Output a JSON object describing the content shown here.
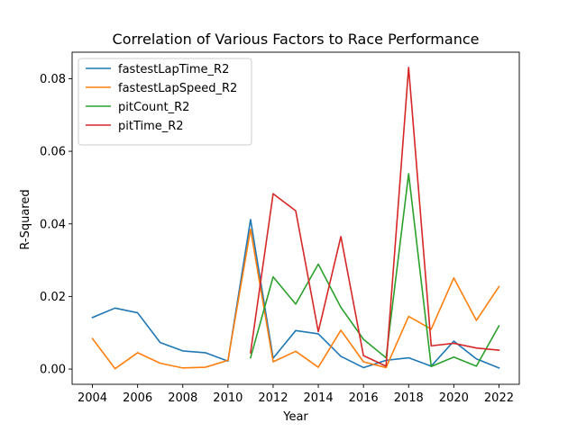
{
  "chart_data": {
    "type": "line",
    "title": "Correlation of Various Factors to Race Performance",
    "xlabel": "Year",
    "ylabel": "R-Squared",
    "xlim": [
      2003.1,
      2022.9
    ],
    "ylim": [
      -0.0042,
      0.0873
    ],
    "x_ticks": [
      2004,
      2006,
      2008,
      2010,
      2012,
      2014,
      2016,
      2018,
      2020,
      2022
    ],
    "y_ticks": [
      0.0,
      0.02,
      0.04,
      0.06,
      0.08
    ],
    "y_tick_labels": [
      "0.00",
      "0.02",
      "0.04",
      "0.06",
      "0.08"
    ],
    "grid": false,
    "legend_position": "upper-left",
    "series": [
      {
        "name": "fastestLapTime_R2",
        "color": "#1f77b4",
        "x": [
          2004,
          2005,
          2006,
          2007,
          2008,
          2009,
          2010,
          2011,
          2012,
          2013,
          2014,
          2015,
          2016,
          2017,
          2018,
          2019,
          2020,
          2021,
          2022
        ],
        "y": [
          0.0142,
          0.0168,
          0.0155,
          0.0073,
          0.005,
          0.0045,
          0.0022,
          0.0412,
          0.003,
          0.0106,
          0.0097,
          0.0035,
          0.0004,
          0.0024,
          0.0031,
          0.0008,
          0.0077,
          0.0028,
          0.0003
        ]
      },
      {
        "name": "fastestLapSpeed_R2",
        "color": "#ff7f0e",
        "x": [
          2004,
          2005,
          2006,
          2007,
          2008,
          2009,
          2010,
          2011,
          2012,
          2013,
          2014,
          2015,
          2016,
          2017,
          2018,
          2019,
          2020,
          2021,
          2022
        ],
        "y": [
          0.0084,
          0.0001,
          0.0045,
          0.0016,
          0.0003,
          0.0005,
          0.0024,
          0.0385,
          0.002,
          0.0049,
          0.0005,
          0.0107,
          0.002,
          0.0004,
          0.0145,
          0.011,
          0.0251,
          0.0134,
          0.0227
        ]
      },
      {
        "name": "pitCount_R2",
        "color": "#2ca02c",
        "x": [
          2011,
          2012,
          2013,
          2014,
          2015,
          2016,
          2017,
          2018,
          2019,
          2020,
          2021,
          2022
        ],
        "y": [
          0.0031,
          0.0254,
          0.0179,
          0.0289,
          0.017,
          0.0082,
          0.0031,
          0.0538,
          0.0007,
          0.0033,
          0.0008,
          0.0119
        ]
      },
      {
        "name": "pitTime_R2",
        "color": "#d62728",
        "x": [
          2011,
          2012,
          2013,
          2014,
          2015,
          2016,
          2017,
          2018,
          2019,
          2020,
          2021,
          2022
        ],
        "y": [
          0.0045,
          0.0483,
          0.0436,
          0.0103,
          0.0365,
          0.0037,
          0.0008,
          0.0831,
          0.0064,
          0.0071,
          0.0058,
          0.0052
        ]
      }
    ]
  }
}
